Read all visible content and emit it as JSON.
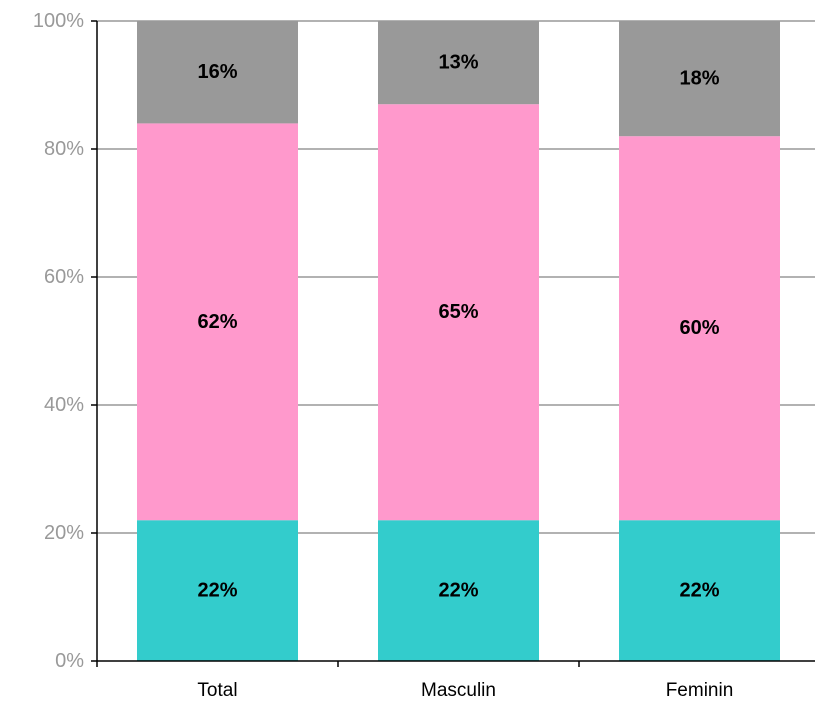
{
  "chart_data": {
    "type": "bar",
    "stacked": "percent",
    "categories": [
      "Total",
      "Masculin",
      "Feminin"
    ],
    "series": [
      {
        "values": [
          22,
          22,
          22
        ],
        "labels": [
          "22%",
          "22%",
          "22%"
        ],
        "color": "#33cccc"
      },
      {
        "values": [
          62,
          65,
          60
        ],
        "labels": [
          "62%",
          "65%",
          "60%"
        ],
        "color": "#ff99cc"
      },
      {
        "values": [
          16,
          13,
          18
        ],
        "labels": [
          "16%",
          "13%",
          "18%"
        ],
        "color": "#999999"
      }
    ],
    "yticks": [
      "0%",
      "20%",
      "40%",
      "60%",
      "80%",
      "100%"
    ],
    "ylim": [
      0,
      100
    ],
    "grid": true,
    "axis_color": "#000000",
    "grid_color": "#999999",
    "tick_label_color": "#999999",
    "category_label_color": "#000000",
    "data_label_color": "#000000"
  }
}
